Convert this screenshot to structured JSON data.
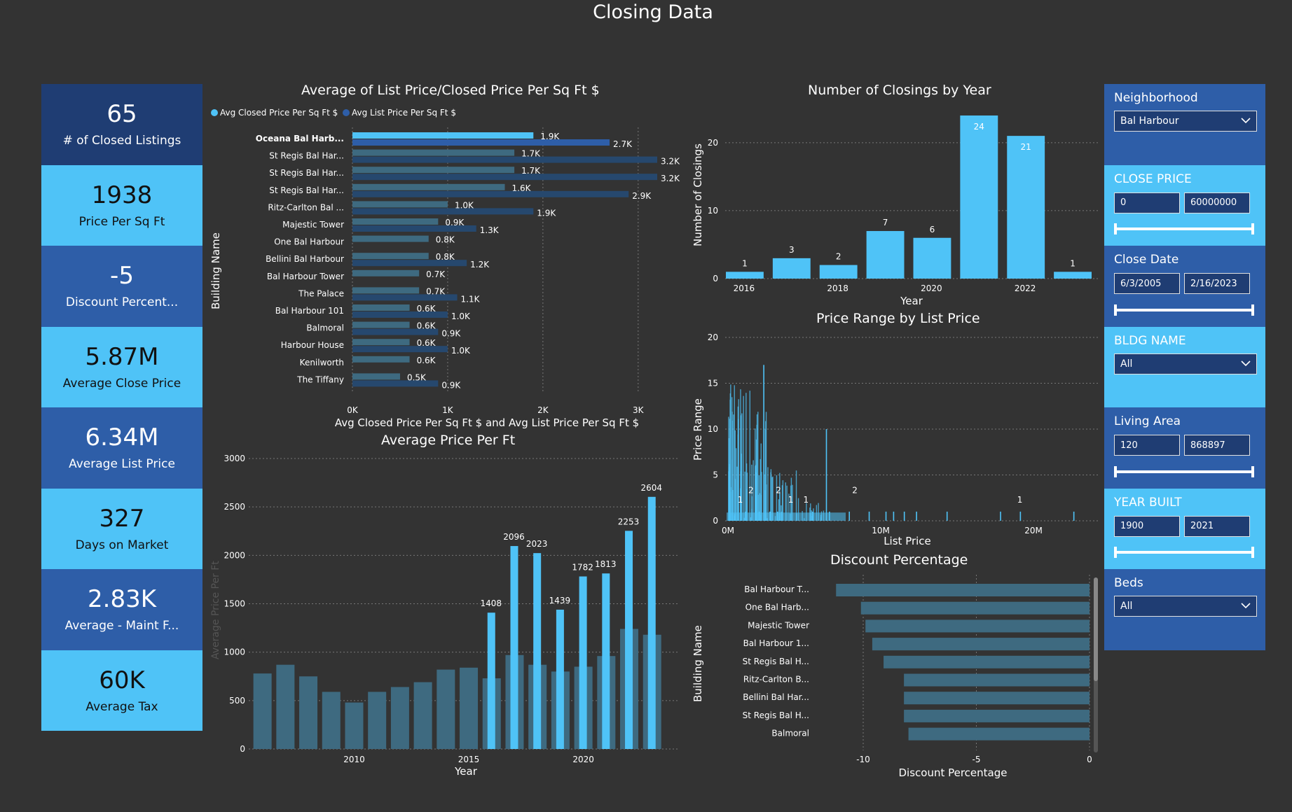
{
  "page_title": "Closing Data",
  "kpis": [
    {
      "value": "65",
      "label": "# of Closed Listings",
      "style": "dark"
    },
    {
      "value": "1938",
      "label": "Price Per Sq Ft",
      "style": "light"
    },
    {
      "value": "-5",
      "label": "Discount Percent...",
      "style": "mid"
    },
    {
      "value": "5.87M",
      "label": "Average Close Price",
      "style": "light"
    },
    {
      "value": "6.34M",
      "label": "Average List Price",
      "style": "mid"
    },
    {
      "value": "327",
      "label": "Days on Market",
      "style": "light"
    },
    {
      "value": "2.83K",
      "label": "Average - Maint F...",
      "style": "mid"
    },
    {
      "value": "60K",
      "label": "Average Tax",
      "style": "light"
    }
  ],
  "slicers": {
    "neighborhood": {
      "title": "Neighborhood",
      "value": "Bal Harbour"
    },
    "close_price": {
      "title": "CLOSE PRICE",
      "min": "0",
      "max": "60000000"
    },
    "close_date": {
      "title": "Close Date",
      "min": "6/3/2005",
      "max": "2/16/2023"
    },
    "bldg_name": {
      "title": "BLDG NAME",
      "value": "All"
    },
    "living_area": {
      "title": "Living Area",
      "min": "120",
      "max": "868897"
    },
    "year_built": {
      "title": "YEAR BUILT",
      "min": "1900",
      "max": "2021"
    },
    "beds": {
      "title": "Beds",
      "value": "All"
    }
  },
  "colors": {
    "light": "#4fc3f7",
    "dark": "#1f3d73",
    "mid": "#2e5ea8",
    "muted": "#3e6a80"
  },
  "chart_data": [
    {
      "id": "price_per_sqft_by_building",
      "type": "bar",
      "orientation": "horizontal",
      "title": "Average of List Price/Closed Price Per Sq Ft $",
      "xlabel": "Avg Closed Price Per Sq Ft $ and Avg List Price Per Sq Ft $",
      "ylabel": "Building Name",
      "xlim": [
        0,
        3200
      ],
      "xticks": [
        "0K",
        "1K",
        "2K",
        "3K"
      ],
      "legend": "top-left",
      "categories": [
        "Oceana Bal Harb...",
        "St Regis Bal Har...",
        "St Regis Bal Har...",
        "St Regis Bal Har...",
        "Ritz-Carlton Bal ...",
        "Majestic Tower",
        "One Bal Harbour",
        "Bellini Bal Harbour",
        "Bal Harbour Tower",
        "The Palace",
        "Bal Harbour 101",
        "Balmoral",
        "Harbour House",
        "Kenilworth",
        "The Tiffany"
      ],
      "series": [
        {
          "name": "Avg Closed Price Per Sq Ft $",
          "values": [
            1900,
            1700,
            1700,
            1600,
            1000,
            900,
            800,
            800,
            700,
            700,
            600,
            600,
            600,
            600,
            500
          ],
          "labels": [
            "1.9K",
            "1.7K",
            "1.7K",
            "1.6K",
            "1.0K",
            "0.9K",
            "0.8K",
            "0.8K",
            "0.7K",
            "0.7K",
            "0.6K",
            "0.6K",
            "0.6K",
            "0.6K",
            "0.5K"
          ]
        },
        {
          "name": "Avg List Price Per Sq Ft $",
          "values": [
            2700,
            3200,
            3200,
            2900,
            1900,
            1300,
            null,
            1200,
            null,
            1100,
            1000,
            900,
            1000,
            null,
            900
          ],
          "labels": [
            "2.7K",
            "3.2K",
            "3.2K",
            "2.9K",
            "1.9K",
            "1.3K",
            "",
            "1.2K",
            "",
            "1.1K",
            "1.0K",
            "0.9K",
            "1.0K",
            "",
            "0.9K"
          ]
        }
      ]
    },
    {
      "id": "closings_by_year",
      "type": "bar",
      "title": "Number of Closings by Year",
      "xlabel": "Year",
      "ylabel": "Number of Closings",
      "categories": [
        2016,
        2017,
        2018,
        2019,
        2020,
        2021,
        2022,
        2023
      ],
      "values": [
        1,
        3,
        2,
        7,
        6,
        24,
        21,
        1
      ],
      "ylim": [
        0,
        24
      ],
      "yticks": [
        0,
        10,
        20
      ],
      "xticks": [
        "2016",
        "2018",
        "2020",
        "2022"
      ]
    },
    {
      "id": "average_price_per_ft",
      "type": "bar",
      "title": "Average Price Per Ft",
      "xlabel": "Year",
      "ylabel": "Average Price Per Ft",
      "ylim": [
        0,
        3000
      ],
      "yticks": [
        0,
        500,
        1000,
        1500,
        2000,
        2500,
        3000
      ],
      "xticks": [
        "2010",
        "2015",
        "2020"
      ],
      "series": [
        {
          "name": "background",
          "x": [
            2006,
            2007,
            2008,
            2009,
            2010,
            2011,
            2012,
            2013,
            2014,
            2015,
            2016,
            2017,
            2018,
            2019,
            2020,
            2021,
            2022,
            2023
          ],
          "values": [
            780,
            870,
            750,
            590,
            480,
            590,
            640,
            690,
            820,
            840,
            730,
            970,
            870,
            800,
            850,
            960,
            1240,
            1180
          ]
        },
        {
          "name": "highlight",
          "x": [
            2016,
            2017,
            2018,
            2019,
            2020,
            2021,
            2022,
            2023
          ],
          "values": [
            1408,
            2096,
            2023,
            1439,
            1782,
            1813,
            2253,
            2604
          ]
        }
      ]
    },
    {
      "id": "price_range_by_list_price",
      "type": "bar",
      "title": "Price Range by List Price",
      "xlabel": "List Price",
      "ylabel": "Price Range",
      "ylim": [
        0,
        20
      ],
      "yticks": [
        0,
        5,
        10,
        15,
        20
      ],
      "xticks": [
        "0M",
        "10M",
        "20M"
      ],
      "labels": [
        {
          "x_m": 0.9,
          "y": 2,
          "text": "1"
        },
        {
          "x_m": 1.6,
          "y": 3,
          "text": "2"
        },
        {
          "x_m": 3.4,
          "y": 3,
          "text": "2"
        },
        {
          "x_m": 4.2,
          "y": 2,
          "text": "1"
        },
        {
          "x_m": 5.2,
          "y": 2,
          "text": "1"
        },
        {
          "x_m": 8.4,
          "y": 3,
          "text": "2"
        },
        {
          "x_m": 19.2,
          "y": 2,
          "text": "1"
        }
      ]
    },
    {
      "id": "discount_percentage",
      "type": "bar",
      "orientation": "horizontal",
      "title": "Discount Percentage",
      "xlabel": "Discount Percentage",
      "ylabel": "Building Name",
      "xlim": [
        -11.5,
        0
      ],
      "xticks": [
        "-10",
        "-5",
        "0"
      ],
      "categories": [
        "Bal Harbour T...",
        "One Bal Harb...",
        "Majestic Tower",
        "Bal Harbour 1...",
        "St Regis Bal H...",
        "Ritz-Carlton B...",
        "Bellini Bal Har...",
        "St Regis Bal H...",
        "Balmoral"
      ],
      "values": [
        -11.2,
        -10.1,
        -9.9,
        -9.6,
        -9.1,
        -8.2,
        -8.2,
        -8.2,
        -8.0
      ]
    }
  ]
}
